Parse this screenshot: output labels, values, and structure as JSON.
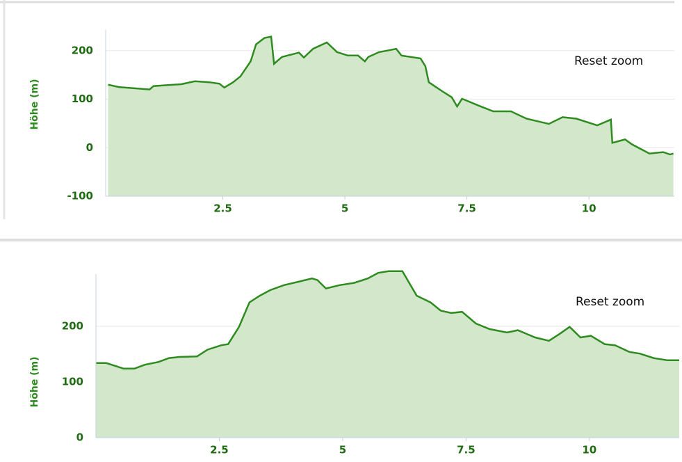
{
  "chart_data": [
    {
      "type": "area",
      "y_label": "Höhe (m)",
      "button": "Reset zoom",
      "color": "#2e8b1f",
      "fill": "#d3e8cb",
      "grid": true,
      "xlim": [
        0.1,
        11.75
      ],
      "xticks": [
        2.5,
        5,
        7.5,
        10
      ],
      "ylim": [
        -100,
        250
      ],
      "yticks": [
        -100,
        0,
        100,
        200
      ],
      "x": [
        0.15,
        0.37,
        1.0,
        1.08,
        1.65,
        1.93,
        2.22,
        2.43,
        2.53,
        2.71,
        2.86,
        3.07,
        3.18,
        3.35,
        3.49,
        3.55,
        3.71,
        4.06,
        4.16,
        4.35,
        4.63,
        4.84,
        5.06,
        5.27,
        5.41,
        5.48,
        5.7,
        5.91,
        6.05,
        6.16,
        6.55,
        6.65,
        6.72,
        6.97,
        7.19,
        7.3,
        7.4,
        7.76,
        8.04,
        8.4,
        8.72,
        9.18,
        9.46,
        9.74,
        10.17,
        10.45,
        10.48,
        10.74,
        10.88,
        11.24,
        11.52,
        11.66,
        11.73
      ],
      "values": [
        130,
        125,
        120,
        127,
        131,
        137,
        135,
        132,
        124,
        135,
        147,
        178,
        213,
        226,
        229,
        173,
        187,
        196,
        186,
        204,
        217,
        197,
        190,
        190,
        178,
        187,
        197,
        201,
        204,
        190,
        184,
        168,
        135,
        118,
        104,
        85,
        101,
        86,
        75,
        75,
        60,
        49,
        63,
        60,
        46,
        58,
        10,
        17,
        7,
        -12,
        -9,
        -14,
        -12
      ]
    },
    {
      "type": "area",
      "y_label": "Höhe (m)",
      "button": "Reset zoom",
      "color": "#2e8b1f",
      "fill": "#d3e8cb",
      "grid": true,
      "xlim": [
        0,
        11.82
      ],
      "xticks": [
        2.5,
        5,
        7.5,
        10
      ],
      "ylim": [
        0,
        300
      ],
      "yticks": [
        0,
        100,
        200
      ],
      "x": [
        0,
        0.21,
        0.42,
        0.56,
        0.78,
        0.99,
        1.27,
        1.48,
        1.69,
        2.05,
        2.26,
        2.54,
        2.68,
        2.9,
        3.11,
        3.32,
        3.53,
        3.81,
        4.1,
        4.38,
        4.49,
        4.66,
        4.94,
        5.23,
        5.51,
        5.72,
        5.93,
        6.21,
        6.5,
        6.78,
        6.99,
        7.2,
        7.42,
        7.7,
        7.98,
        8.33,
        8.55,
        8.9,
        9.18,
        9.39,
        9.6,
        9.82,
        10.03,
        10.31,
        10.52,
        10.81,
        11.02,
        11.3,
        11.58,
        11.82
      ],
      "values": [
        134,
        134,
        128,
        124,
        124,
        131,
        136,
        143,
        145,
        146,
        158,
        166,
        168,
        199,
        243,
        255,
        265,
        274,
        280,
        286,
        283,
        268,
        274,
        278,
        286,
        296,
        299,
        299,
        255,
        243,
        228,
        224,
        226,
        205,
        195,
        189,
        193,
        180,
        174,
        186,
        199,
        180,
        183,
        168,
        166,
        154,
        151,
        143,
        139,
        139
      ]
    }
  ]
}
